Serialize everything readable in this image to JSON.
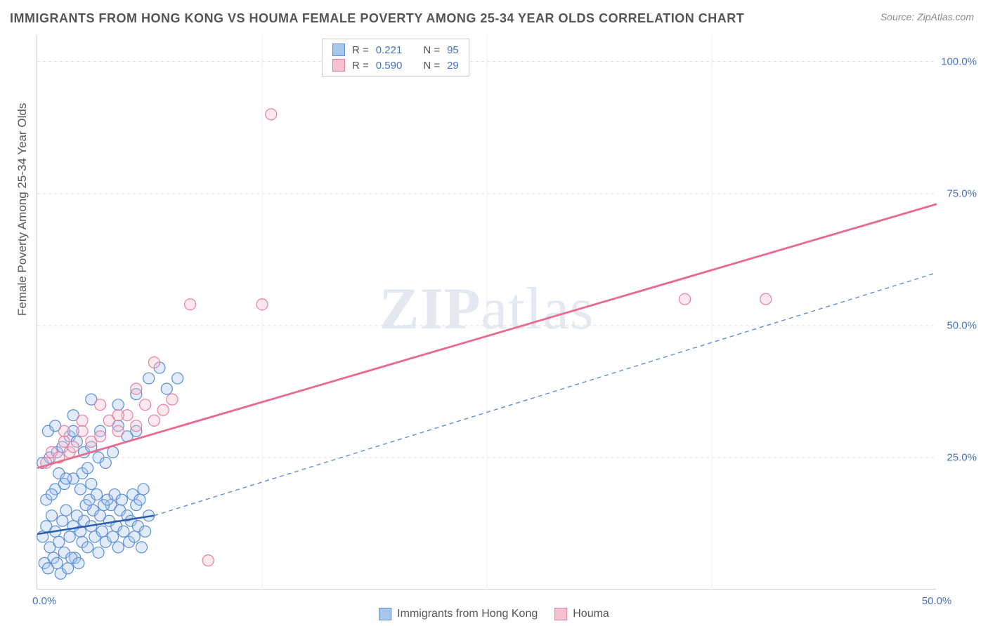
{
  "title": "IMMIGRANTS FROM HONG KONG VS HOUMA FEMALE POVERTY AMONG 25-34 YEAR OLDS CORRELATION CHART",
  "source": "Source: ZipAtlas.com",
  "watermark_zip": "ZIP",
  "watermark_atlas": "atlas",
  "chart": {
    "type": "scatter",
    "background_color": "#ffffff",
    "grid_color": "#dddddd",
    "grid_dash": "4,4",
    "axis_color": "#cccccc",
    "tick_label_color": "#4472c4",
    "tick_label_fontsize": 15,
    "xlim": [
      0,
      50
    ],
    "ylim": [
      0,
      105
    ],
    "x_ticks": [
      0,
      50
    ],
    "x_tick_labels": [
      "0.0%",
      "50.0%"
    ],
    "x_minor_ticks": [
      12.5,
      25,
      37.5
    ],
    "y_ticks": [
      25,
      50,
      75,
      100
    ],
    "y_tick_labels": [
      "25.0%",
      "50.0%",
      "75.0%",
      "100.0%"
    ],
    "y_axis_title": "Female Poverty Among 25-34 Year Olds",
    "y_axis_title_fontsize": 17,
    "marker_radius": 8,
    "series": [
      {
        "key": "hk",
        "label": "Immigrants from Hong Kong",
        "fill_color": "#a8c7ed",
        "stroke_color": "#5a8fd6",
        "R": "0.221",
        "N": "95",
        "trend_line": {
          "x1": 0,
          "y1": 10.5,
          "x2": 6.5,
          "y2": 14,
          "color": "#2a5db0",
          "width": 2.5,
          "dash": "none"
        },
        "trend_ext": {
          "x1": 6.5,
          "y1": 14,
          "x2": 50,
          "y2": 60,
          "color": "#5a8fd6",
          "width": 1.4,
          "dash": "6,5"
        },
        "points": [
          [
            0.3,
            10
          ],
          [
            0.5,
            12
          ],
          [
            0.7,
            8
          ],
          [
            0.8,
            14
          ],
          [
            1.0,
            11
          ],
          [
            1.2,
            9
          ],
          [
            1.4,
            13
          ],
          [
            1.5,
            7
          ],
          [
            1.6,
            15
          ],
          [
            1.8,
            10
          ],
          [
            2.0,
            12
          ],
          [
            2.1,
            6
          ],
          [
            2.2,
            14
          ],
          [
            2.4,
            11
          ],
          [
            2.5,
            9
          ],
          [
            2.6,
            13
          ],
          [
            2.8,
            8
          ],
          [
            3.0,
            12
          ],
          [
            3.1,
            15
          ],
          [
            3.2,
            10
          ],
          [
            3.4,
            7
          ],
          [
            3.5,
            14
          ],
          [
            3.6,
            11
          ],
          [
            3.8,
            9
          ],
          [
            4.0,
            13
          ],
          [
            4.1,
            16
          ],
          [
            4.2,
            10
          ],
          [
            4.4,
            12
          ],
          [
            4.5,
            8
          ],
          [
            4.6,
            15
          ],
          [
            4.8,
            11
          ],
          [
            5.0,
            14
          ],
          [
            5.1,
            9
          ],
          [
            5.2,
            13
          ],
          [
            5.4,
            10
          ],
          [
            5.5,
            16
          ],
          [
            5.6,
            12
          ],
          [
            5.8,
            8
          ],
          [
            6.0,
            11
          ],
          [
            6.2,
            14
          ],
          [
            0.4,
            5
          ],
          [
            0.6,
            4
          ],
          [
            0.9,
            6
          ],
          [
            1.1,
            5
          ],
          [
            1.3,
            3
          ],
          [
            1.7,
            4
          ],
          [
            1.9,
            6
          ],
          [
            2.3,
            5
          ],
          [
            2.7,
            16
          ],
          [
            2.9,
            17
          ],
          [
            3.3,
            18
          ],
          [
            3.7,
            16
          ],
          [
            3.9,
            17
          ],
          [
            4.3,
            18
          ],
          [
            4.7,
            17
          ],
          [
            5.3,
            18
          ],
          [
            5.7,
            17
          ],
          [
            5.9,
            19
          ],
          [
            1.0,
            19
          ],
          [
            1.5,
            20
          ],
          [
            2.0,
            21
          ],
          [
            2.5,
            22
          ],
          [
            3.0,
            20
          ],
          [
            0.5,
            17
          ],
          [
            0.8,
            18
          ],
          [
            1.2,
            22
          ],
          [
            1.6,
            21
          ],
          [
            2.4,
            19
          ],
          [
            2.8,
            23
          ],
          [
            0.3,
            24
          ],
          [
            0.7,
            25
          ],
          [
            1.1,
            26
          ],
          [
            1.4,
            27
          ],
          [
            1.8,
            29
          ],
          [
            2.2,
            28
          ],
          [
            2.6,
            26
          ],
          [
            3.0,
            27
          ],
          [
            3.4,
            25
          ],
          [
            3.8,
            24
          ],
          [
            4.2,
            26
          ],
          [
            0.6,
            30
          ],
          [
            1.0,
            31
          ],
          [
            2.0,
            30
          ],
          [
            3.5,
            30
          ],
          [
            4.5,
            31
          ],
          [
            5.0,
            29
          ],
          [
            5.5,
            30
          ],
          [
            2.0,
            33
          ],
          [
            3.0,
            36
          ],
          [
            4.5,
            35
          ],
          [
            5.5,
            37
          ],
          [
            6.2,
            40
          ],
          [
            6.8,
            42
          ],
          [
            7.2,
            38
          ],
          [
            7.8,
            40
          ]
        ]
      },
      {
        "key": "houma",
        "label": "Houma",
        "fill_color": "#f5c1ce",
        "stroke_color": "#e87f9f",
        "R": "0.590",
        "N": "29",
        "trend_line": {
          "x1": 0,
          "y1": 23,
          "x2": 50,
          "y2": 73,
          "color": "#e86a8c",
          "width": 2.8,
          "dash": "none"
        },
        "points": [
          [
            0.5,
            24
          ],
          [
            0.8,
            26
          ],
          [
            1.2,
            25
          ],
          [
            1.5,
            28
          ],
          [
            1.8,
            26
          ],
          [
            2.0,
            27
          ],
          [
            2.5,
            30
          ],
          [
            3.0,
            28
          ],
          [
            3.5,
            29
          ],
          [
            4.0,
            32
          ],
          [
            4.5,
            30
          ],
          [
            5.0,
            33
          ],
          [
            5.5,
            31
          ],
          [
            6.0,
            35
          ],
          [
            6.5,
            32
          ],
          [
            7.0,
            34
          ],
          [
            1.5,
            30
          ],
          [
            2.5,
            32
          ],
          [
            3.5,
            35
          ],
          [
            4.5,
            33
          ],
          [
            5.5,
            38
          ],
          [
            6.5,
            43
          ],
          [
            7.5,
            36
          ],
          [
            8.5,
            54
          ],
          [
            12.5,
            54
          ],
          [
            9.5,
            5.5
          ],
          [
            13.0,
            90
          ],
          [
            36.0,
            55
          ],
          [
            40.5,
            55
          ]
        ]
      }
    ],
    "legend_top": {
      "R_label": "R  =",
      "N_label": "N  ="
    },
    "legend_bottom_labels": [
      "Immigrants from Hong Kong",
      "Houma"
    ]
  }
}
